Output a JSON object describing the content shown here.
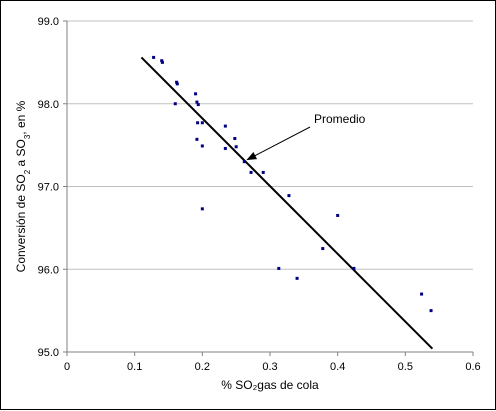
{
  "chart_data": {
    "type": "scatter",
    "xlabel": "% SO₂gas de cola",
    "ylabel_parts": [
      "Conversión de SO",
      "2",
      " a SO",
      "3",
      ", en %"
    ],
    "xlim": [
      0,
      0.6
    ],
    "ylim": [
      95.0,
      99.0
    ],
    "x_ticks": [
      0,
      0.1,
      0.2,
      0.3,
      0.4,
      0.5,
      0.6
    ],
    "x_tick_labels": [
      "0",
      "0.1",
      "0.2",
      "0.3",
      "0.4",
      "0.5",
      "0.6"
    ],
    "y_ticks": [
      95.0,
      96.0,
      97.0,
      98.0,
      99.0
    ],
    "y_tick_labels": [
      "95.0",
      "96.0",
      "97.0",
      "98.0",
      "99.0"
    ],
    "grid": "horizontal",
    "series": [
      {
        "points": [
          [
            0.128,
            98.56
          ],
          [
            0.14,
            98.52
          ],
          [
            0.141,
            98.5
          ],
          [
            0.162,
            98.26
          ],
          [
            0.163,
            98.24
          ],
          [
            0.16,
            98.0
          ],
          [
            0.19,
            98.12
          ],
          [
            0.192,
            98.02
          ],
          [
            0.194,
            97.99
          ],
          [
            0.193,
            97.77
          ],
          [
            0.2,
            97.77
          ],
          [
            0.192,
            97.57
          ],
          [
            0.2,
            97.49
          ],
          [
            0.234,
            97.73
          ],
          [
            0.234,
            97.46
          ],
          [
            0.248,
            97.58
          ],
          [
            0.25,
            97.48
          ],
          [
            0.262,
            97.3
          ],
          [
            0.272,
            97.17
          ],
          [
            0.29,
            97.17
          ],
          [
            0.328,
            96.89
          ],
          [
            0.2,
            96.73
          ],
          [
            0.4,
            96.65
          ],
          [
            0.378,
            96.25
          ],
          [
            0.313,
            96.01
          ],
          [
            0.424,
            96.01
          ],
          [
            0.34,
            95.89
          ],
          [
            0.524,
            95.7
          ],
          [
            0.538,
            95.5
          ]
        ]
      }
    ],
    "trendline": {
      "x": [
        0.11,
        0.54
      ],
      "y": [
        98.56,
        95.04
      ]
    },
    "annotation": {
      "text": "Promedio",
      "points_to": [
        0.262,
        97.3
      ]
    },
    "colors": {
      "points": "#000080",
      "line": "#000000",
      "grid": "#c0c0c0"
    }
  }
}
